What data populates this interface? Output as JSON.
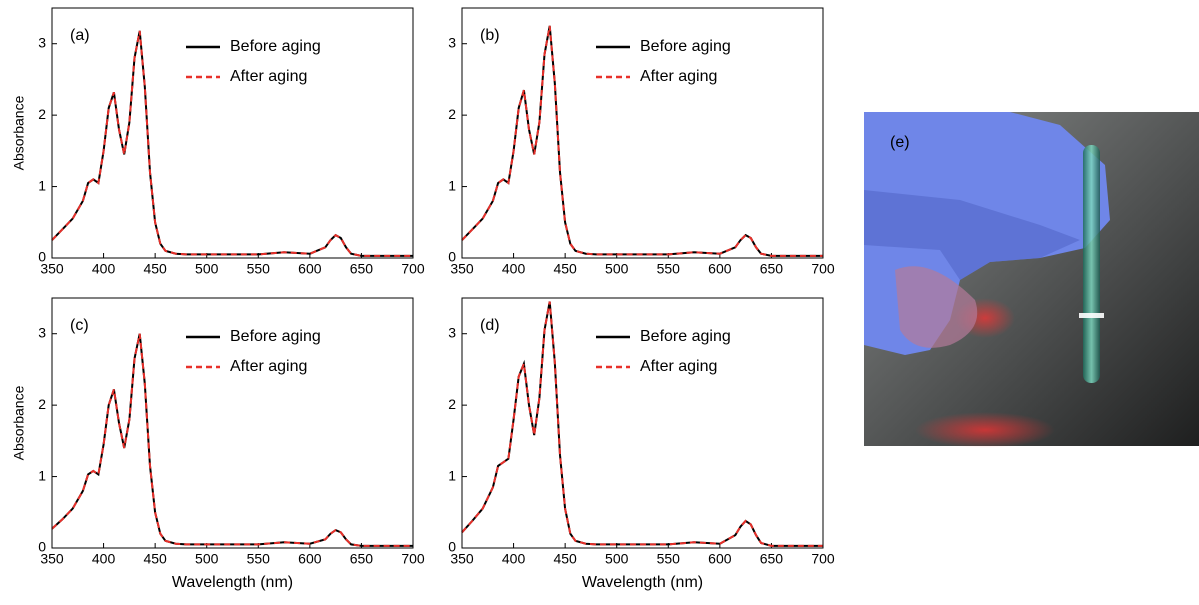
{
  "chart_data": [
    {
      "type": "line",
      "panel_label": "(a)",
      "ylabel": "Absorbance",
      "x": [
        350,
        360,
        370,
        380,
        385,
        390,
        395,
        400,
        405,
        410,
        415,
        420,
        425,
        430,
        435,
        440,
        445,
        450,
        455,
        460,
        470,
        480,
        500,
        550,
        575,
        600,
        615,
        620,
        625,
        630,
        635,
        640,
        650,
        700
      ],
      "series": [
        {
          "name": "Before aging",
          "color": "#000000",
          "line_style": "solid",
          "values": [
            0.25,
            0.4,
            0.55,
            0.8,
            1.05,
            1.1,
            1.05,
            1.5,
            2.1,
            2.32,
            1.8,
            1.45,
            1.9,
            2.8,
            3.18,
            2.4,
            1.2,
            0.5,
            0.2,
            0.1,
            0.06,
            0.05,
            0.05,
            0.05,
            0.08,
            0.06,
            0.15,
            0.25,
            0.32,
            0.28,
            0.15,
            0.06,
            0.03,
            0.03
          ]
        },
        {
          "name": "After aging",
          "color": "#e8302a",
          "line_style": "dashed",
          "values": [
            0.25,
            0.4,
            0.55,
            0.8,
            1.05,
            1.1,
            1.05,
            1.5,
            2.1,
            2.32,
            1.8,
            1.45,
            1.9,
            2.8,
            3.18,
            2.4,
            1.2,
            0.5,
            0.2,
            0.1,
            0.06,
            0.05,
            0.05,
            0.05,
            0.08,
            0.06,
            0.15,
            0.25,
            0.32,
            0.28,
            0.15,
            0.06,
            0.03,
            0.03
          ]
        }
      ],
      "xlim": [
        350,
        700
      ],
      "ylim": [
        0,
        3.5
      ],
      "xticks": [
        350,
        400,
        450,
        500,
        550,
        600,
        650,
        700
      ],
      "yticks": [
        0,
        1,
        2,
        3
      ]
    },
    {
      "type": "line",
      "panel_label": "(b)",
      "x": [
        350,
        360,
        370,
        380,
        385,
        390,
        395,
        400,
        405,
        410,
        415,
        420,
        425,
        430,
        435,
        440,
        445,
        450,
        455,
        460,
        470,
        480,
        500,
        550,
        575,
        600,
        615,
        620,
        625,
        630,
        635,
        640,
        650,
        700
      ],
      "series": [
        {
          "name": "Before aging",
          "color": "#000000",
          "line_style": "solid",
          "values": [
            0.25,
            0.4,
            0.55,
            0.8,
            1.05,
            1.1,
            1.05,
            1.5,
            2.1,
            2.35,
            1.8,
            1.45,
            1.9,
            2.85,
            3.25,
            2.45,
            1.2,
            0.5,
            0.2,
            0.1,
            0.06,
            0.05,
            0.05,
            0.05,
            0.08,
            0.06,
            0.15,
            0.25,
            0.32,
            0.28,
            0.15,
            0.06,
            0.03,
            0.03
          ]
        },
        {
          "name": "After aging",
          "color": "#e8302a",
          "line_style": "dashed",
          "values": [
            0.25,
            0.4,
            0.55,
            0.8,
            1.05,
            1.1,
            1.05,
            1.5,
            2.1,
            2.35,
            1.8,
            1.45,
            1.9,
            2.85,
            3.25,
            2.45,
            1.2,
            0.5,
            0.2,
            0.1,
            0.06,
            0.05,
            0.05,
            0.05,
            0.08,
            0.06,
            0.15,
            0.25,
            0.32,
            0.28,
            0.15,
            0.06,
            0.03,
            0.03
          ]
        }
      ],
      "xlim": [
        350,
        700
      ],
      "ylim": [
        0,
        3.5
      ],
      "xticks": [
        350,
        400,
        450,
        500,
        550,
        600,
        650,
        700
      ],
      "yticks": [
        0,
        1,
        2,
        3
      ]
    },
    {
      "type": "line",
      "panel_label": "(c)",
      "ylabel": "Absorbance",
      "xlabel": "Wavelength (nm)",
      "x": [
        350,
        360,
        370,
        380,
        385,
        390,
        395,
        400,
        405,
        410,
        415,
        420,
        425,
        430,
        435,
        440,
        445,
        450,
        455,
        460,
        470,
        480,
        500,
        550,
        575,
        600,
        615,
        620,
        625,
        630,
        635,
        640,
        650,
        700
      ],
      "series": [
        {
          "name": "Before aging",
          "color": "#000000",
          "line_style": "solid",
          "values": [
            0.27,
            0.4,
            0.55,
            0.8,
            1.03,
            1.08,
            1.03,
            1.45,
            2.0,
            2.22,
            1.75,
            1.4,
            1.8,
            2.65,
            3.0,
            2.3,
            1.15,
            0.5,
            0.2,
            0.1,
            0.06,
            0.05,
            0.05,
            0.05,
            0.08,
            0.06,
            0.12,
            0.2,
            0.25,
            0.22,
            0.12,
            0.05,
            0.03,
            0.03
          ]
        },
        {
          "name": "After aging",
          "color": "#e8302a",
          "line_style": "dashed",
          "values": [
            0.27,
            0.4,
            0.55,
            0.8,
            1.03,
            1.08,
            1.03,
            1.45,
            2.0,
            2.22,
            1.75,
            1.4,
            1.8,
            2.65,
            3.0,
            2.3,
            1.15,
            0.5,
            0.2,
            0.1,
            0.06,
            0.05,
            0.05,
            0.05,
            0.08,
            0.06,
            0.12,
            0.2,
            0.25,
            0.22,
            0.12,
            0.05,
            0.03,
            0.03
          ]
        }
      ],
      "xlim": [
        350,
        700
      ],
      "ylim": [
        0,
        3.5
      ],
      "xticks": [
        350,
        400,
        450,
        500,
        550,
        600,
        650,
        700
      ],
      "yticks": [
        0,
        1,
        2,
        3
      ]
    },
    {
      "type": "line",
      "panel_label": "(d)",
      "xlabel": "Wavelength (nm)",
      "x": [
        350,
        360,
        370,
        380,
        385,
        390,
        395,
        400,
        405,
        410,
        415,
        420,
        425,
        430,
        435,
        440,
        445,
        450,
        455,
        460,
        470,
        480,
        500,
        550,
        575,
        600,
        615,
        620,
        625,
        630,
        635,
        640,
        650,
        700
      ],
      "series": [
        {
          "name": "Before aging",
          "color": "#000000",
          "line_style": "solid",
          "values": [
            0.22,
            0.38,
            0.55,
            0.85,
            1.15,
            1.2,
            1.25,
            1.8,
            2.4,
            2.58,
            2.0,
            1.58,
            2.1,
            3.05,
            3.45,
            2.6,
            1.3,
            0.55,
            0.2,
            0.1,
            0.06,
            0.05,
            0.05,
            0.05,
            0.08,
            0.06,
            0.18,
            0.3,
            0.38,
            0.33,
            0.18,
            0.07,
            0.03,
            0.03
          ]
        },
        {
          "name": "After aging",
          "color": "#e8302a",
          "line_style": "dashed",
          "values": [
            0.22,
            0.38,
            0.55,
            0.85,
            1.15,
            1.2,
            1.25,
            1.8,
            2.4,
            2.58,
            2.0,
            1.58,
            2.1,
            3.05,
            3.45,
            2.6,
            1.3,
            0.55,
            0.2,
            0.1,
            0.06,
            0.05,
            0.05,
            0.05,
            0.08,
            0.06,
            0.18,
            0.3,
            0.38,
            0.33,
            0.18,
            0.07,
            0.03,
            0.03
          ]
        }
      ],
      "xlim": [
        350,
        700
      ],
      "ylim": [
        0,
        3.5
      ],
      "xticks": [
        350,
        400,
        450,
        500,
        550,
        600,
        650,
        700
      ],
      "yticks": [
        0,
        1,
        2,
        3
      ]
    }
  ],
  "photo": {
    "label": "(e)"
  }
}
